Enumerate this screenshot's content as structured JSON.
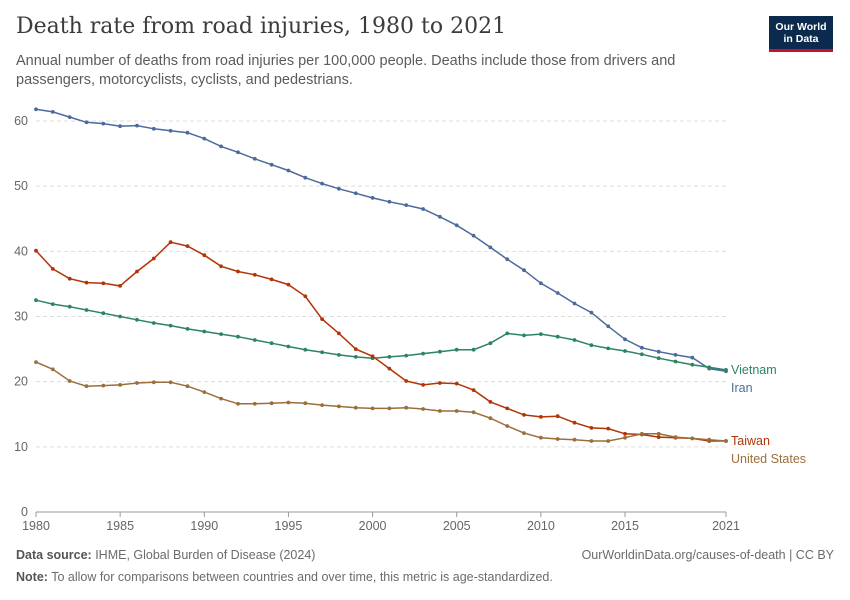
{
  "header": {
    "title": "Death rate from road injuries, 1980 to 2021",
    "subtitle": "Annual number of deaths from road injuries per 100,000 people. Deaths include those from drivers and passengers, motorcyclists, cyclists, and pedestrians.",
    "logo_line1": "Our World",
    "logo_line2": "in Data"
  },
  "footer": {
    "source_label": "Data source:",
    "source_text": " IHME, Global Burden of Disease (2024)",
    "url": "OurWorldinData.org/causes-of-death | CC BY",
    "note_label": "Note:",
    "note_text": " To allow for comparisons between countries and over time, this metric is age-standardized."
  },
  "chart_data": {
    "type": "line",
    "title": "Death rate from road injuries, 1980 to 2021",
    "xlabel": "",
    "ylabel": "",
    "xlim": [
      1980,
      2021
    ],
    "ylim": [
      0,
      60
    ],
    "yticks": [
      0,
      10,
      20,
      30,
      40,
      50,
      60
    ],
    "xticks": [
      1980,
      1985,
      1990,
      1995,
      2000,
      2005,
      2010,
      2015,
      2021
    ],
    "grid": "horizontal dashed",
    "legend": "labels at right end of lines",
    "x": [
      1980,
      1981,
      1982,
      1983,
      1984,
      1985,
      1986,
      1987,
      1988,
      1989,
      1990,
      1991,
      1992,
      1993,
      1994,
      1995,
      1996,
      1997,
      1998,
      1999,
      2000,
      2001,
      2002,
      2003,
      2004,
      2005,
      2006,
      2007,
      2008,
      2009,
      2010,
      2011,
      2012,
      2013,
      2014,
      2015,
      2016,
      2017,
      2018,
      2019,
      2020,
      2021
    ],
    "series": [
      {
        "name": "Iran",
        "color": "#4c6a9c",
        "values": [
          61.8,
          61.4,
          60.6,
          59.8,
          59.6,
          59.2,
          59.3,
          58.8,
          58.5,
          58.2,
          57.3,
          56.1,
          55.2,
          54.2,
          53.3,
          52.4,
          51.3,
          50.4,
          49.6,
          48.9,
          48.2,
          47.6,
          47.1,
          46.5,
          45.3,
          44.0,
          42.4,
          40.6,
          38.8,
          37.1,
          35.1,
          33.6,
          32.0,
          30.6,
          28.5,
          26.5,
          25.2,
          24.6,
          24.1,
          23.7,
          22.0,
          21.6
        ]
      },
      {
        "name": "Vietnam",
        "color": "#2c8465",
        "values": [
          32.5,
          31.9,
          31.5,
          31.0,
          30.5,
          30.0,
          29.5,
          29.0,
          28.6,
          28.1,
          27.7,
          27.3,
          26.9,
          26.4,
          25.9,
          25.4,
          24.9,
          24.5,
          24.1,
          23.8,
          23.6,
          23.8,
          24.0,
          24.3,
          24.6,
          24.9,
          24.9,
          25.9,
          27.4,
          27.1,
          27.3,
          26.9,
          26.4,
          25.6,
          25.1,
          24.7,
          24.2,
          23.6,
          23.1,
          22.6,
          22.2,
          21.8
        ]
      },
      {
        "name": "Taiwan",
        "color": "#b13507",
        "values": [
          40.1,
          37.3,
          35.8,
          35.2,
          35.1,
          34.7,
          36.9,
          38.9,
          41.4,
          40.8,
          39.4,
          37.7,
          36.9,
          36.4,
          35.7,
          34.9,
          33.1,
          29.6,
          27.4,
          25.0,
          23.9,
          22.0,
          20.1,
          19.5,
          19.8,
          19.7,
          18.7,
          16.9,
          15.9,
          14.9,
          14.6,
          14.7,
          13.7,
          12.9,
          12.8,
          12.0,
          11.9,
          11.5,
          11.4,
          11.3,
          10.9,
          10.9
        ]
      },
      {
        "name": "United States",
        "color": "#9a6f3b",
        "values": [
          23.0,
          21.9,
          20.1,
          19.3,
          19.4,
          19.5,
          19.8,
          19.9,
          19.9,
          19.3,
          18.4,
          17.4,
          16.6,
          16.6,
          16.7,
          16.8,
          16.7,
          16.4,
          16.2,
          16.0,
          15.9,
          15.9,
          16.0,
          15.8,
          15.5,
          15.5,
          15.3,
          14.4,
          13.2,
          12.1,
          11.4,
          11.2,
          11.1,
          10.9,
          10.9,
          11.4,
          12.0,
          12.0,
          11.5,
          11.3,
          11.1,
          10.9
        ]
      }
    ]
  }
}
